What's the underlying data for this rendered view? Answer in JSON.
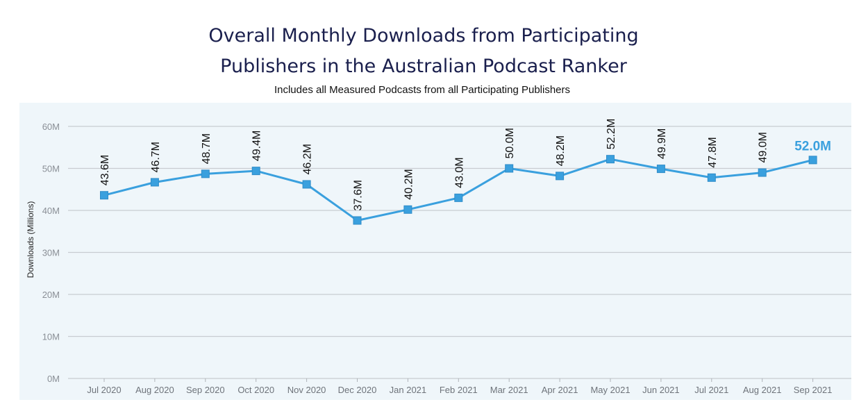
{
  "chart_data": {
    "type": "line",
    "title_lines": [
      "Overall Monthly Downloads from Participating",
      "Publishers in the Australian Podcast Ranker"
    ],
    "subtitle": "Includes all Measured Podcasts from all Participating Publishers",
    "ylabel": "Downloads (Millions)",
    "xlabel": "",
    "ylim": [
      0,
      60
    ],
    "yticks": [
      0,
      10,
      20,
      30,
      40,
      50,
      60
    ],
    "ytick_labels": [
      "0M",
      "10M",
      "20M",
      "30M",
      "40M",
      "50M",
      "60M"
    ],
    "grid": true,
    "categories": [
      "Jul 2020",
      "Aug 2020",
      "Sep 2020",
      "Oct 2020",
      "Nov 2020",
      "Dec 2020",
      "Jan 2021",
      "Feb 2021",
      "Mar 2021",
      "Apr 2021",
      "May 2021",
      "Jun 2021",
      "Jul 2021",
      "Aug 2021",
      "Sep 2021"
    ],
    "series": [
      {
        "values": [
          43.6,
          46.7,
          48.7,
          49.4,
          46.2,
          37.6,
          40.2,
          43.0,
          50.0,
          48.2,
          52.2,
          49.9,
          47.8,
          49.0,
          52.0
        ],
        "labels": [
          "43.6M",
          "46.7M",
          "48.7M",
          "49.4M",
          "46.2M",
          "37.6M",
          "40.2M",
          "43.0M",
          "50.0M",
          "48.2M",
          "52.2M",
          "49.9M",
          "47.8M",
          "49.0M",
          "52.0M"
        ],
        "color": "#3aa0de"
      }
    ],
    "colors": {
      "line": "#3aa0de",
      "marker": "#3aa0de",
      "plot_background": "#eff6fa",
      "grid": "#c8ccd1",
      "last_label": "#3aa0de"
    }
  }
}
